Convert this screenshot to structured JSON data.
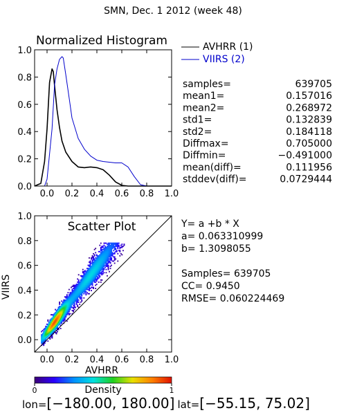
{
  "page_title": "SMN,  Dec. 1 2012 (week 48)",
  "chart_data": [
    {
      "type": "line",
      "title": "Normalized Histogram",
      "xlabel": "",
      "ylabel": "",
      "xlim": [
        -0.1,
        1.0
      ],
      "ylim": [
        0.0,
        1.0
      ],
      "xticks": [
        0.0,
        0.2,
        0.4,
        0.6,
        0.8,
        1.0
      ],
      "xtick_labels": [
        "0.0",
        "0.2",
        "0.4",
        "0.6",
        "0.8",
        "1.0"
      ],
      "yticks": [
        0.0,
        0.2,
        0.4,
        0.6,
        0.8,
        1.0
      ],
      "ytick_labels": [
        "0.0",
        "0.2",
        "0.4",
        "0.6",
        "0.8",
        "1.0"
      ],
      "legend_position": "right",
      "series": [
        {
          "name": "AVHRR (1)",
          "color": "#000000",
          "x": [
            -0.1,
            -0.05,
            -0.02,
            0.0,
            0.02,
            0.04,
            0.05,
            0.06,
            0.08,
            0.1,
            0.12,
            0.15,
            0.2,
            0.25,
            0.3,
            0.35,
            0.4,
            0.45,
            0.5,
            0.55,
            0.6,
            0.65,
            0.7,
            0.8,
            1.0
          ],
          "y": [
            0.0,
            0.02,
            0.18,
            0.42,
            0.76,
            0.86,
            0.84,
            0.74,
            0.56,
            0.43,
            0.33,
            0.25,
            0.18,
            0.14,
            0.135,
            0.14,
            0.135,
            0.12,
            0.08,
            0.03,
            0.005,
            0.0,
            0.0,
            0.0,
            0.0
          ]
        },
        {
          "name": "VIIRS (2)",
          "color": "#0000cc",
          "x": [
            -0.1,
            -0.02,
            0.0,
            0.04,
            0.06,
            0.08,
            0.1,
            0.12,
            0.13,
            0.15,
            0.18,
            0.2,
            0.25,
            0.3,
            0.35,
            0.4,
            0.45,
            0.5,
            0.55,
            0.6,
            0.65,
            0.7,
            0.75,
            0.8,
            1.0
          ],
          "y": [
            0.0,
            0.0,
            0.05,
            0.42,
            0.74,
            0.86,
            0.93,
            0.95,
            0.94,
            0.82,
            0.63,
            0.5,
            0.35,
            0.27,
            0.22,
            0.19,
            0.18,
            0.175,
            0.17,
            0.17,
            0.14,
            0.07,
            0.01,
            0.0,
            0.0
          ]
        }
      ],
      "stats": [
        {
          "label": "samples=",
          "value": "639705"
        },
        {
          "label": "mean1=",
          "value": "0.157016"
        },
        {
          "label": "mean2=",
          "value": "0.268972"
        },
        {
          "label": "std1=",
          "value": "0.132839"
        },
        {
          "label": "std2=",
          "value": "0.184118"
        },
        {
          "label": "Diffmax=",
          "value": "0.705000"
        },
        {
          "label": "Diffmin=",
          "value": "−0.491000"
        },
        {
          "label": "mean(diff)=",
          "value": "0.111956"
        },
        {
          "label": "stddev(diff)=",
          "value": "0.0729444"
        }
      ]
    },
    {
      "type": "heatmap",
      "title": "Scatter Plot",
      "xlabel": "AVHRR",
      "ylabel": "VIIRS",
      "xlim": [
        -0.1,
        1.0
      ],
      "ylim": [
        -0.1,
        1.0
      ],
      "xticks": [
        0.0,
        0.2,
        0.4,
        0.6,
        0.8,
        1.0
      ],
      "xtick_labels": [
        "0.0",
        "0.2",
        "0.4",
        "0.6",
        "0.8",
        "1.0"
      ],
      "yticks": [
        0.0,
        0.2,
        0.4,
        0.6,
        0.8,
        1.0
      ],
      "ytick_labels": [
        "0.0",
        "0.2",
        "0.4",
        "0.6",
        "0.8",
        "1.0"
      ],
      "reference_line": {
        "x": [
          -0.1,
          1.0
        ],
        "y": [
          -0.1,
          1.0
        ]
      },
      "fit": {
        "a": 0.063310999,
        "b": 1.3098055
      },
      "density_label": "Density",
      "colorbar_min_label": "0",
      "colorbar_max_label": "1",
      "colorbar_colors": [
        "#3d0078",
        "#2a00ff",
        "#0090ff",
        "#00e0e0",
        "#20d020",
        "#e8e000",
        "#ff8000",
        "#e01000"
      ],
      "annotations": {
        "equation": "Y= a +b * X",
        "a_line": "a= 0.063310999",
        "b_line": "b= 1.3098055",
        "samples_line": "Samples= 639705",
        "cc_line": "CC=  0.9450",
        "rmse_line": "RMSE= 0.060224469"
      }
    }
  ],
  "footer": {
    "lon_label": "lon=",
    "lon_range": "[−180.00, 180.00]",
    "lat_label": "lat=",
    "lat_range": "[−55.15, 75.02]"
  }
}
